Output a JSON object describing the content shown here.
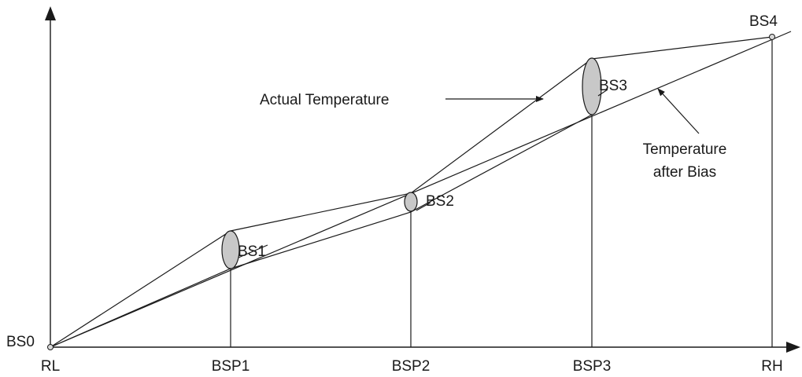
{
  "diagram": {
    "colors": {
      "line": "#1a1a1a",
      "ellipse_fill": "#c8c8c8",
      "point_fill": "#d9d9d9",
      "background": "#ffffff"
    },
    "x_axis_labels": {
      "rl": "RL",
      "bsp1": "BSP1",
      "bsp2": "BSP2",
      "bsp3": "BSP3",
      "rh": "RH"
    },
    "bias_labels": {
      "bs0": "BS0",
      "bs1": "BS1",
      "bs2": "BS2",
      "bs3": "BS3",
      "bs4": "BS4"
    },
    "annotations": {
      "actual_temperature": "Actual Temperature",
      "temperature_after_bias_line1": "Temperature",
      "temperature_after_bias_line2": "after Bias"
    }
  }
}
